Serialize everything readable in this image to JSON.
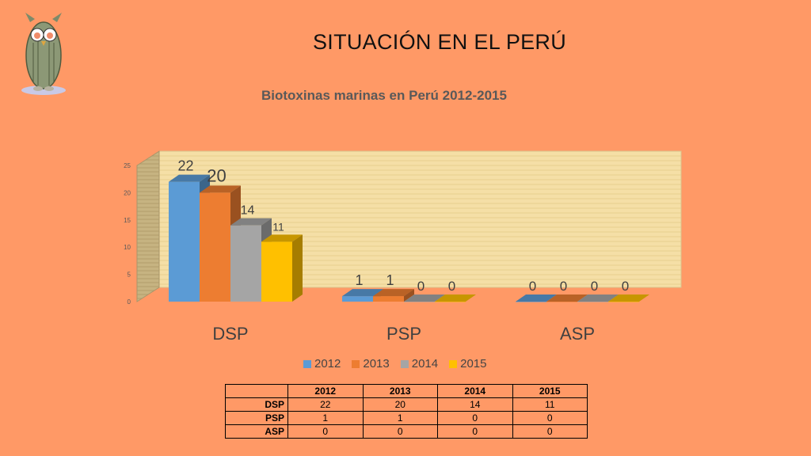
{
  "slide": {
    "title": "SITUACIÓN EN EL PERÚ"
  },
  "chart_data": {
    "type": "bar",
    "title": "Biotoxinas marinas en Perú 2012-2015",
    "categories": [
      "DSP",
      "PSP",
      "ASP"
    ],
    "series": [
      {
        "name": "2012",
        "values": [
          22,
          1,
          0
        ],
        "color": "#5b9bd5"
      },
      {
        "name": "2013",
        "values": [
          20,
          1,
          0
        ],
        "color": "#ed7d31"
      },
      {
        "name": "2014",
        "values": [
          14,
          0,
          0
        ],
        "color": "#a5a5a5"
      },
      {
        "name": "2015",
        "values": [
          11,
          0,
          0
        ],
        "color": "#ffc000"
      }
    ],
    "ylim": [
      0,
      25
    ],
    "yticks": [
      "0",
      "5",
      "10",
      "15",
      "20",
      "25"
    ],
    "legend_position": "bottom",
    "grid": false
  },
  "table": {
    "headers": [
      "",
      "2012",
      "2013",
      "2014",
      "2015"
    ],
    "rows": [
      {
        "label": "DSP",
        "values": [
          "22",
          "20",
          "14",
          "11"
        ]
      },
      {
        "label": "PSP",
        "values": [
          "1",
          "1",
          "0",
          "0"
        ]
      },
      {
        "label": "ASP",
        "values": [
          "0",
          "0",
          "0",
          "0"
        ]
      }
    ]
  }
}
